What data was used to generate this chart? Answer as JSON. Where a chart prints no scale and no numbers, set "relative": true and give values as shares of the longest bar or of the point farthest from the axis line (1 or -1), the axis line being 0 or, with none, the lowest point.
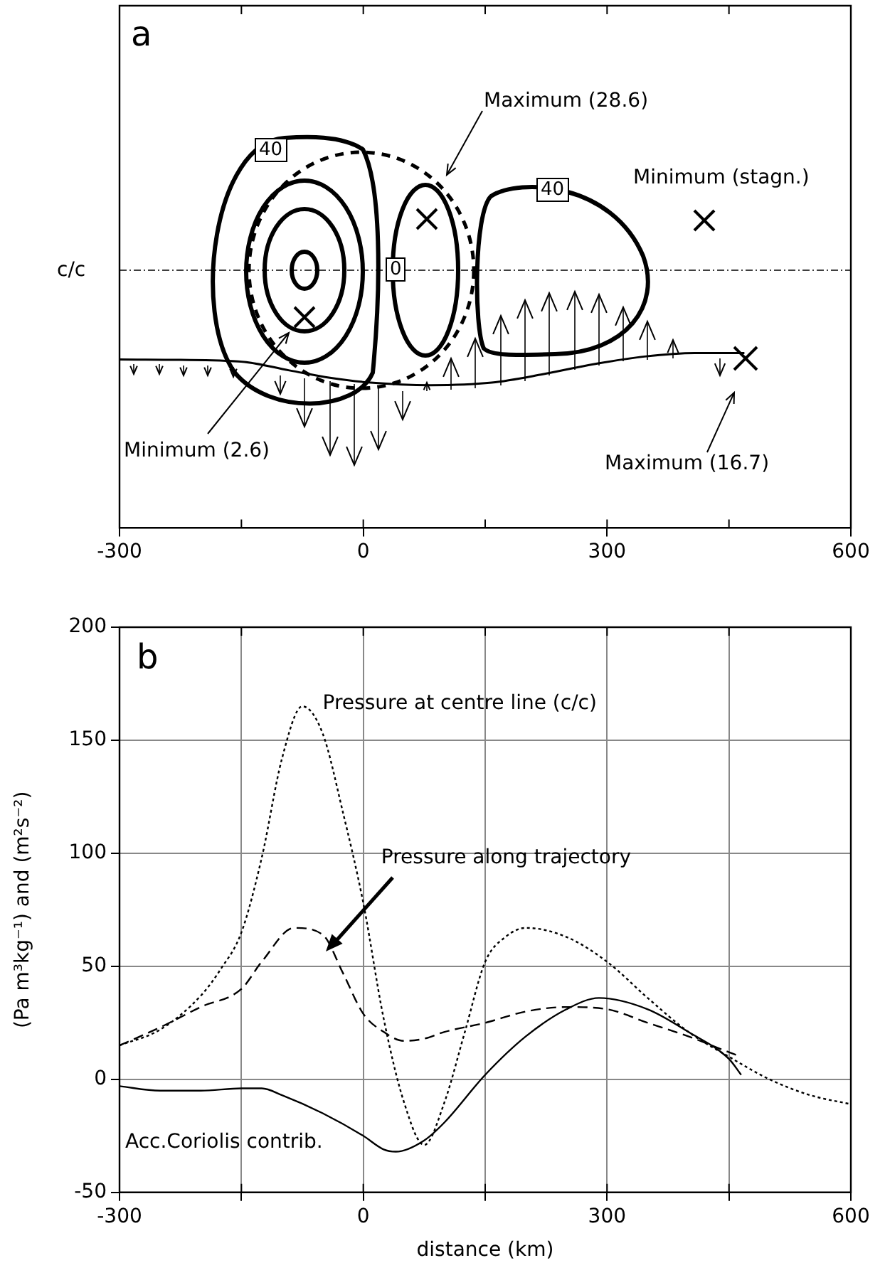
{
  "chart_data": [
    {
      "type": "line",
      "relative": true,
      "xlim": [
        -300,
        600
      ],
      "xticks": [
        -300,
        0,
        300,
        600
      ],
      "tick_labels": "x",
      "legend": false,
      "marker": "none",
      "line_style": "solid",
      "annotations": [
        "a",
        "40",
        "0",
        "40",
        "c/c",
        "Maximum (28.6)",
        "Minimum (stagn.)",
        "Minimum (2.6)",
        "Maximum (16.7)"
      ],
      "series": [
        {
          "color": "#000000",
          "x": [
            -300,
            -154,
            -91,
            -41,
            9,
            83,
            158,
            221,
            283,
            346,
            408,
            469
          ],
          "values": [
            0.8,
            0.74,
            0.46,
            0.23,
            0.08,
            0,
            0.08,
            0.34,
            0.65,
            0.89,
            1,
            1
          ]
        }
      ]
    },
    {
      "type": "line",
      "xlabel": "distance (km)",
      "ylabel": "(Pa m³kg⁻¹) and (m²s⁻²)",
      "xlim": [
        -300,
        600
      ],
      "ylim": [
        -50,
        200
      ],
      "xticks": [
        -300,
        {
          "value": -150,
          "label": null
        },
        0,
        {
          "value": 150,
          "label": null
        },
        300,
        {
          "value": 450,
          "label": null
        },
        600
      ],
      "yticks": [
        -50,
        0,
        50,
        100,
        150,
        200
      ],
      "grid": true,
      "legend": false,
      "marker": "none",
      "annotations": [
        "b"
      ],
      "series": [
        {
          "name": "Pressure at centre line (c/c)",
          "color": "#000000",
          "line_style": "dotted",
          "x": [
            -300,
            -250,
            -200,
            -175,
            -150,
            -125,
            -100,
            -75,
            -50,
            -25,
            0,
            25,
            50,
            75,
            100,
            125,
            150,
            175,
            200,
            250,
            300,
            350,
            400,
            450,
            500,
            550,
            600
          ],
          "values": [
            15,
            22,
            37,
            49,
            65,
            98,
            142,
            165,
            153,
            118,
            78,
            27,
            -10,
            -29,
            -10,
            21,
            52,
            63,
            67,
            63,
            52,
            36,
            21,
            10,
            0,
            -7,
            -11
          ]
        },
        {
          "name": "Pressure along trajectory",
          "color": "#000000",
          "line_style": "dashed",
          "x": [
            -300,
            -250,
            -200,
            -150,
            -125,
            -85,
            -50,
            -25,
            0,
            25,
            50,
            75,
            100,
            150,
            200,
            250,
            300,
            350,
            400,
            450,
            465
          ],
          "values": [
            15,
            23,
            32,
            40,
            52,
            67,
            64,
            47,
            29,
            21,
            17,
            18,
            21,
            25,
            30,
            32,
            31,
            25,
            19,
            12,
            10
          ]
        },
        {
          "name": "Acc.Coriolis contrib.",
          "color": "#000000",
          "line_style": "solid",
          "x": [
            -300,
            -250,
            -200,
            -150,
            -125,
            -100,
            -50,
            0,
            25,
            40,
            75,
            100,
            150,
            200,
            250,
            290,
            350,
            400,
            450,
            465
          ],
          "values": [
            -3,
            -5,
            -5,
            -4,
            -4,
            -7,
            -15,
            -25,
            -31,
            -32,
            -27,
            -19,
            2,
            19,
            31,
            36,
            31,
            21,
            9,
            2
          ]
        }
      ]
    }
  ]
}
